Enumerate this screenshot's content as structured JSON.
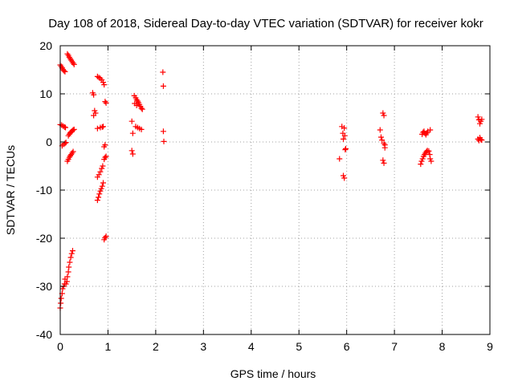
{
  "chart_data": {
    "type": "scatter",
    "title": "Day 108 of 2018, Sidereal Day-to-day VTEC variation (SDTVAR) for receiver kokr",
    "xlabel": "GPS time / hours",
    "ylabel": "SDTVAR / TECUs",
    "xlim": [
      0,
      9
    ],
    "ylim": [
      -40,
      20
    ],
    "xticks": [
      "0",
      "1",
      "2",
      "3",
      "4",
      "5",
      "6",
      "7",
      "8",
      "9"
    ],
    "yticks": [
      "-40",
      "-30",
      "-20",
      "-10",
      "0",
      "10",
      "20"
    ],
    "grid": true,
    "marker": "+",
    "color": "#ff0000",
    "series": [
      {
        "name": "SDTVAR",
        "points": [
          [
            0.0,
            16.0
          ],
          [
            0.02,
            15.7
          ],
          [
            0.04,
            15.4
          ],
          [
            0.06,
            15.0
          ],
          [
            0.08,
            14.8
          ],
          [
            0.1,
            14.6
          ],
          [
            0.0,
            3.6
          ],
          [
            0.03,
            3.5
          ],
          [
            0.06,
            3.3
          ],
          [
            0.09,
            3.1
          ],
          [
            0.11,
            3.0
          ],
          [
            0.04,
            -0.8
          ],
          [
            0.07,
            -0.5
          ],
          [
            0.1,
            -0.3
          ],
          [
            0.12,
            -0.1
          ],
          [
            0.0,
            -34.5
          ],
          [
            0.01,
            -33.5
          ],
          [
            0.02,
            -32.5
          ],
          [
            0.04,
            -31.5
          ],
          [
            0.05,
            -30.5
          ],
          [
            0.07,
            -30.0
          ],
          [
            0.09,
            -29.5
          ],
          [
            0.1,
            -28.5
          ],
          [
            0.12,
            -29.5
          ],
          [
            0.14,
            -29.0
          ],
          [
            0.15,
            -28.0
          ],
          [
            0.17,
            -27.0
          ],
          [
            0.18,
            -26.0
          ],
          [
            0.2,
            -25.0
          ],
          [
            0.22,
            -24.0
          ],
          [
            0.24,
            -23.2
          ],
          [
            0.26,
            -22.6
          ],
          [
            0.15,
            18.3
          ],
          [
            0.17,
            18.0
          ],
          [
            0.19,
            17.6
          ],
          [
            0.21,
            17.3
          ],
          [
            0.23,
            17.0
          ],
          [
            0.25,
            16.7
          ],
          [
            0.27,
            16.4
          ],
          [
            0.29,
            16.1
          ],
          [
            0.15,
            -4.0
          ],
          [
            0.17,
            -3.6
          ],
          [
            0.19,
            -3.2
          ],
          [
            0.21,
            -2.9
          ],
          [
            0.23,
            -2.6
          ],
          [
            0.25,
            -2.3
          ],
          [
            0.27,
            -2.0
          ],
          [
            0.17,
            1.3
          ],
          [
            0.19,
            1.6
          ],
          [
            0.21,
            1.9
          ],
          [
            0.23,
            2.1
          ],
          [
            0.25,
            2.3
          ],
          [
            0.27,
            2.5
          ],
          [
            0.29,
            2.6
          ],
          [
            0.68,
            10.2
          ],
          [
            0.7,
            9.8
          ],
          [
            0.72,
            6.5
          ],
          [
            0.74,
            6.0
          ],
          [
            0.7,
            5.5
          ],
          [
            0.78,
            13.6
          ],
          [
            0.81,
            13.4
          ],
          [
            0.84,
            13.2
          ],
          [
            0.87,
            12.9
          ],
          [
            0.9,
            12.4
          ],
          [
            0.92,
            11.9
          ],
          [
            0.78,
            -12.1
          ],
          [
            0.8,
            -11.5
          ],
          [
            0.82,
            -10.8
          ],
          [
            0.84,
            -10.2
          ],
          [
            0.86,
            -9.7
          ],
          [
            0.88,
            -9.2
          ],
          [
            0.9,
            -8.5
          ],
          [
            0.78,
            -7.3
          ],
          [
            0.81,
            -6.8
          ],
          [
            0.84,
            -6.2
          ],
          [
            0.87,
            -5.5
          ],
          [
            0.89,
            -5.0
          ],
          [
            0.78,
            2.8
          ],
          [
            0.84,
            3.0
          ],
          [
            0.88,
            3.1
          ],
          [
            0.9,
            3.2
          ],
          [
            0.94,
            8.4
          ],
          [
            0.96,
            8.1
          ],
          [
            0.92,
            -1.0
          ],
          [
            0.94,
            -0.6
          ],
          [
            0.92,
            -3.6
          ],
          [
            0.94,
            -3.2
          ],
          [
            0.96,
            -3.0
          ],
          [
            0.92,
            -20.3
          ],
          [
            0.94,
            -19.9
          ],
          [
            0.96,
            -19.6
          ],
          [
            1.5,
            4.3
          ],
          [
            1.52,
            1.8
          ],
          [
            1.5,
            -1.8
          ],
          [
            1.52,
            -2.5
          ],
          [
            1.55,
            9.6
          ],
          [
            1.58,
            9.2
          ],
          [
            1.6,
            8.8
          ],
          [
            1.62,
            8.5
          ],
          [
            1.64,
            8.2
          ],
          [
            1.66,
            7.8
          ],
          [
            1.68,
            7.4
          ],
          [
            1.7,
            7.0
          ],
          [
            1.72,
            6.8
          ],
          [
            1.56,
            8.0
          ],
          [
            1.6,
            7.6
          ],
          [
            1.58,
            3.2
          ],
          [
            1.62,
            3.0
          ],
          [
            1.66,
            2.8
          ],
          [
            1.7,
            2.6
          ],
          [
            2.15,
            14.5
          ],
          [
            2.16,
            11.6
          ],
          [
            2.16,
            2.2
          ],
          [
            2.17,
            0.1
          ],
          [
            5.85,
            -3.5
          ],
          [
            5.9,
            3.2
          ],
          [
            5.92,
            1.8
          ],
          [
            5.93,
            0.6
          ],
          [
            5.95,
            2.9
          ],
          [
            5.96,
            1.3
          ],
          [
            5.97,
            -1.6
          ],
          [
            5.98,
            -1.4
          ],
          [
            5.93,
            -7.0
          ],
          [
            5.95,
            -7.5
          ],
          [
            6.7,
            2.5
          ],
          [
            6.72,
            1.0
          ],
          [
            6.74,
            0.4
          ],
          [
            6.76,
            6.0
          ],
          [
            6.78,
            5.5
          ],
          [
            6.8,
            -0.6
          ],
          [
            6.78,
            -0.3
          ],
          [
            6.76,
            -3.8
          ],
          [
            6.78,
            -4.4
          ],
          [
            6.8,
            -1.2
          ],
          [
            7.55,
            -4.6
          ],
          [
            7.57,
            -4.0
          ],
          [
            7.59,
            -3.5
          ],
          [
            7.61,
            -3.0
          ],
          [
            7.63,
            -2.6
          ],
          [
            7.65,
            -2.3
          ],
          [
            7.67,
            -2.0
          ],
          [
            7.69,
            -1.8
          ],
          [
            7.58,
            1.6
          ],
          [
            7.6,
            2.0
          ],
          [
            7.62,
            2.2
          ],
          [
            7.64,
            1.8
          ],
          [
            7.66,
            1.5
          ],
          [
            7.68,
            1.9
          ],
          [
            7.7,
            2.2
          ],
          [
            7.72,
            -1.9
          ],
          [
            7.74,
            -2.6
          ],
          [
            7.75,
            -3.5
          ],
          [
            7.77,
            -4.0
          ],
          [
            7.75,
            2.5
          ],
          [
            8.75,
            5.2
          ],
          [
            8.77,
            4.6
          ],
          [
            8.79,
            3.8
          ],
          [
            8.81,
            4.3
          ],
          [
            8.83,
            4.7
          ],
          [
            8.75,
            0.6
          ],
          [
            8.77,
            0.3
          ],
          [
            8.79,
            0.9
          ],
          [
            8.81,
            0.5
          ],
          [
            8.83,
            0.4
          ]
        ]
      }
    ]
  }
}
